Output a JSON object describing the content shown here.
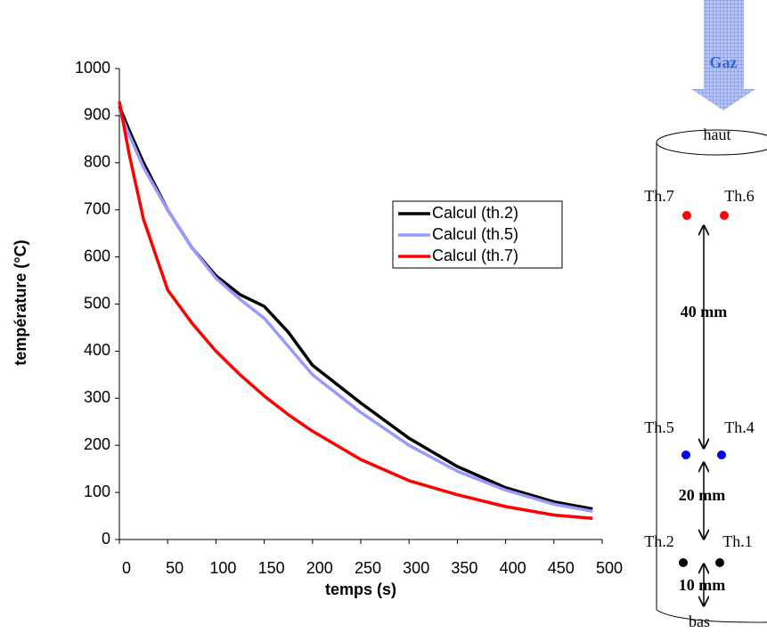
{
  "chart_data": {
    "type": "line",
    "x_label": "temps (s)",
    "y_label": "température (°C)",
    "x": [
      0,
      10,
      25,
      50,
      75,
      100,
      125,
      150,
      175,
      200,
      250,
      300,
      350,
      400,
      450,
      490
    ],
    "series": [
      {
        "name": "Calcul (th.2)",
        "color": "#000000",
        "values": [
          920,
          870,
          800,
          700,
          620,
          560,
          520,
          495,
          440,
          370,
          290,
          215,
          155,
          110,
          80,
          65
        ]
      },
      {
        "name": "Calcul (th.5)",
        "color": "#9999ff",
        "values": [
          910,
          860,
          790,
          700,
          620,
          555,
          510,
          470,
          410,
          350,
          270,
          200,
          145,
          105,
          75,
          60
        ]
      },
      {
        "name": "Calcul (th.7)",
        "color": "#ff0000",
        "values": [
          930,
          820,
          680,
          530,
          460,
          400,
          350,
          305,
          265,
          230,
          170,
          125,
          95,
          70,
          52,
          45
        ]
      }
    ],
    "xlim": [
      0,
      500
    ],
    "xticks": [
      0,
      50,
      100,
      150,
      200,
      250,
      300,
      350,
      400,
      450,
      500
    ],
    "ylim": [
      0,
      1000
    ],
    "yticks": [
      0,
      100,
      200,
      300,
      400,
      500,
      600,
      700,
      800,
      900,
      1000
    ],
    "legend": "center right",
    "grid": false
  },
  "diagram": {
    "gas": "Gaz",
    "top": "haut",
    "bottom": "bas",
    "thermocouples": [
      "Th.7",
      "Th.6",
      "Th.5",
      "Th.4",
      "Th.2",
      "Th.1"
    ],
    "distances": [
      "40 mm",
      "20 mm",
      "10 mm"
    ]
  }
}
